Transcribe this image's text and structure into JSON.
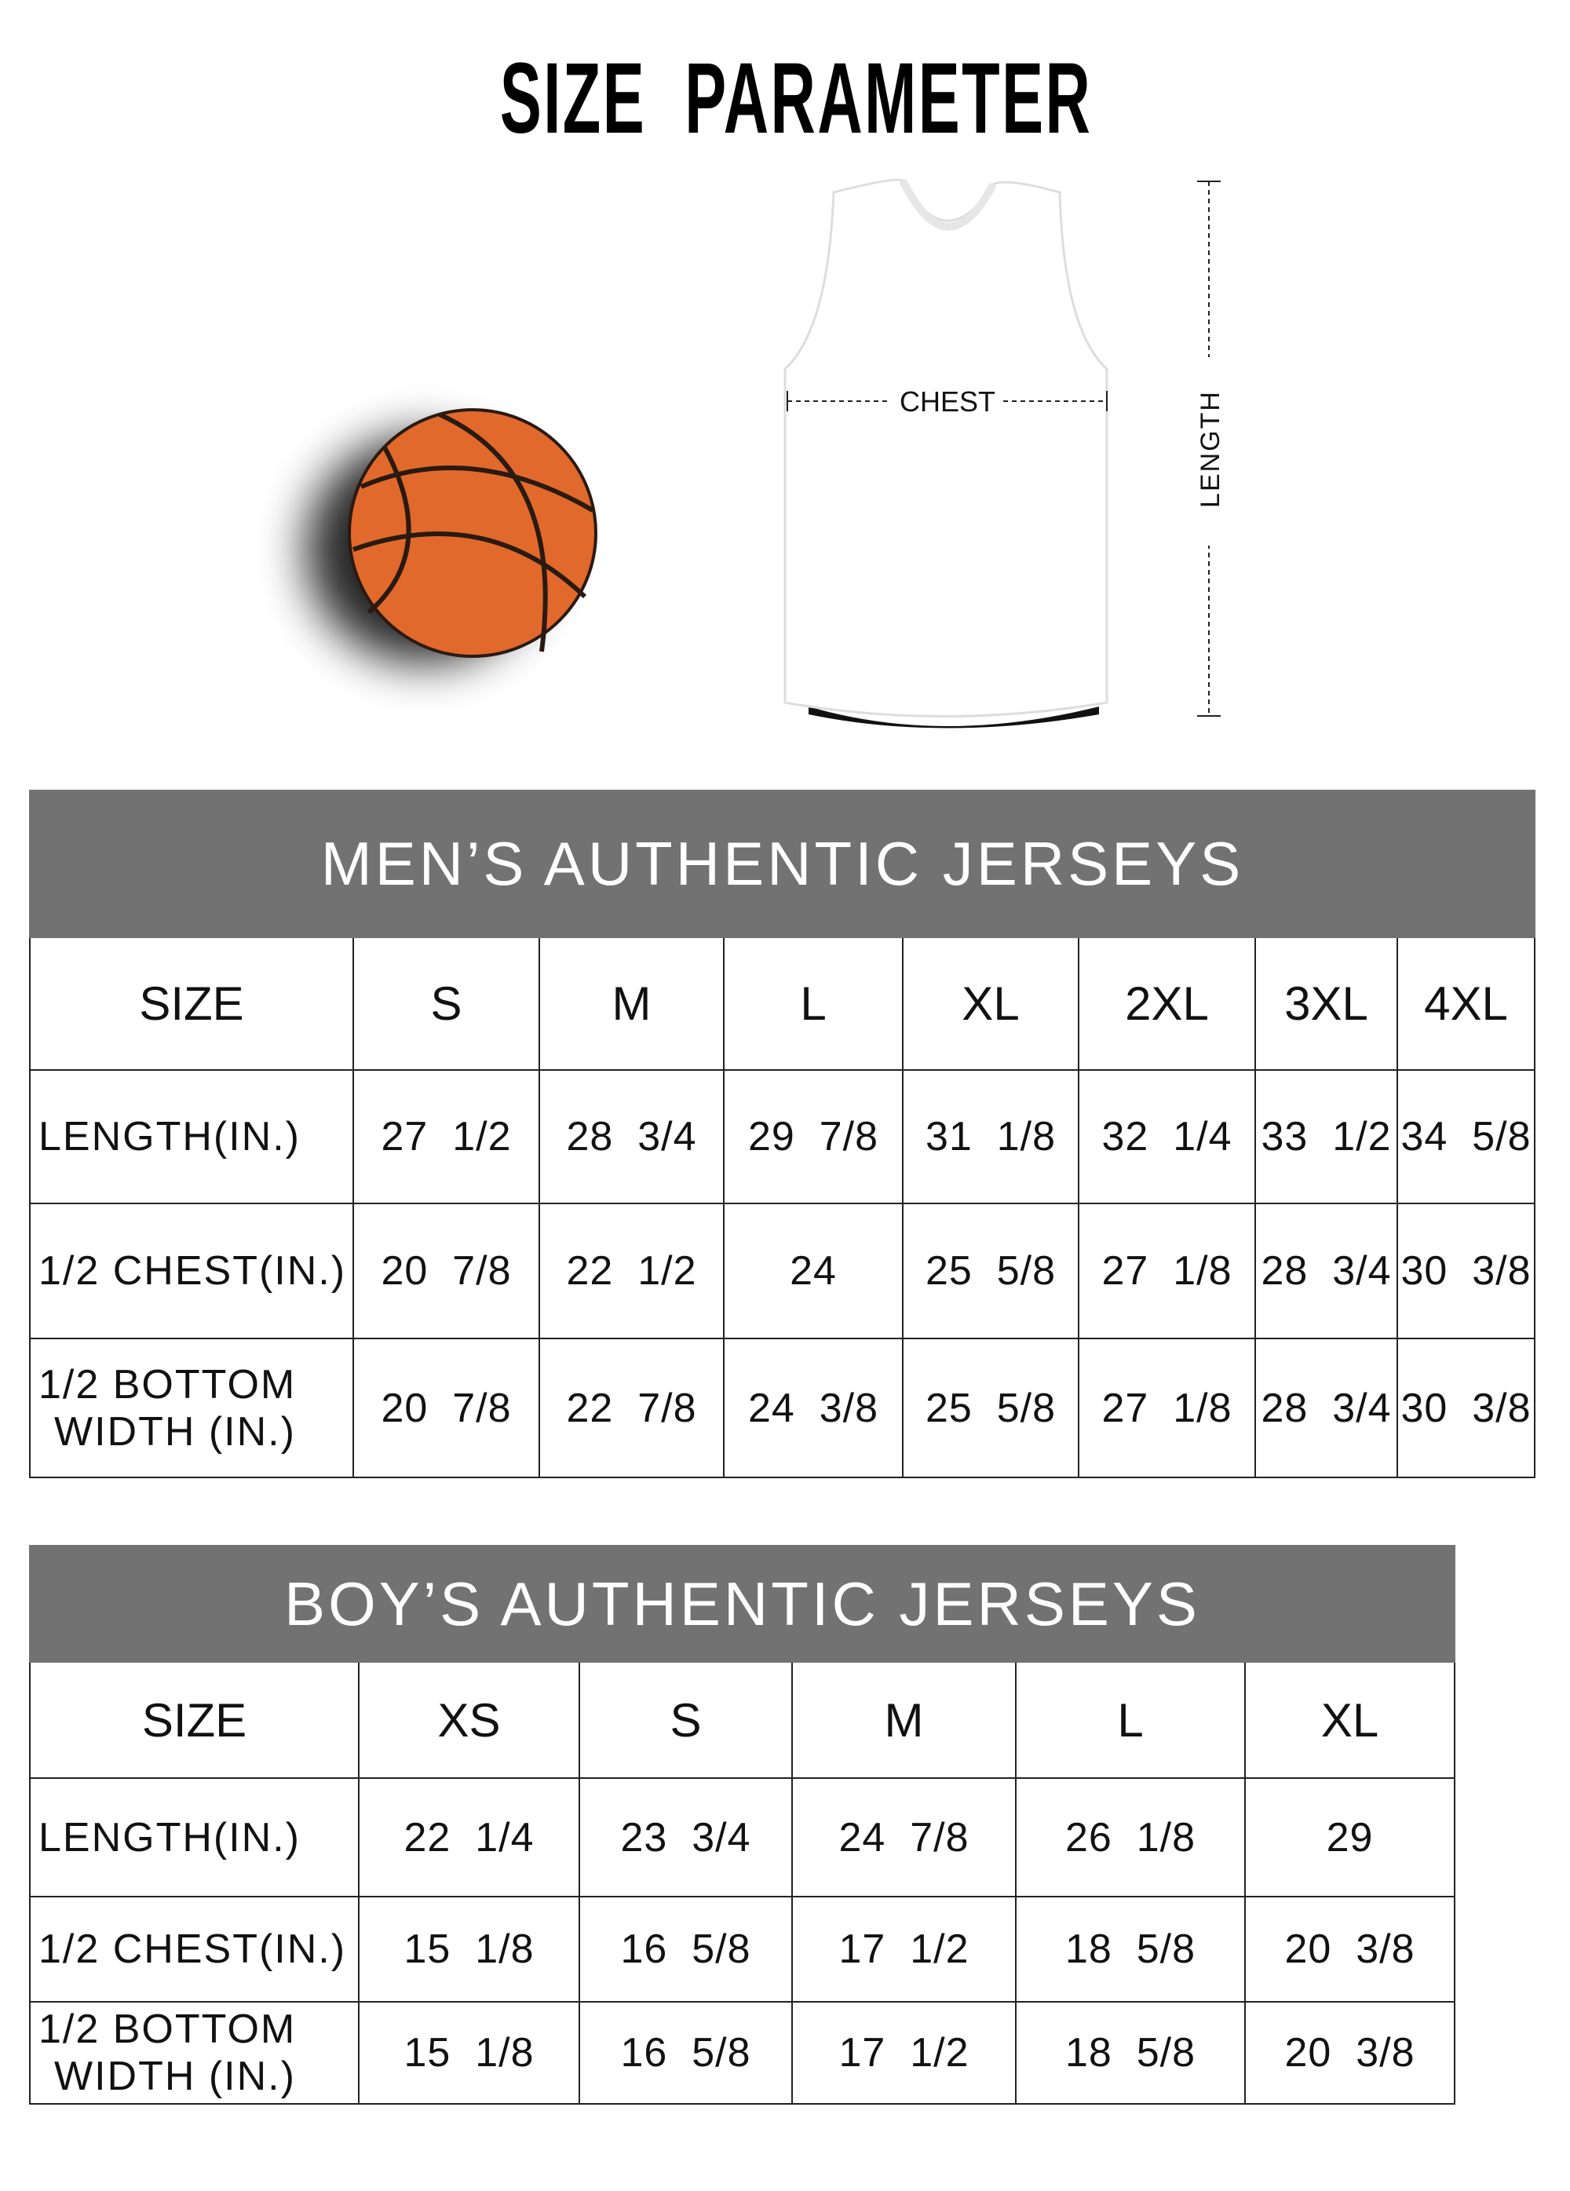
{
  "title": "SIZE  PARAMETER",
  "diagram": {
    "chest_label": "CHEST",
    "length_label": "LENGTH",
    "ball_color": "#e2692c",
    "jersey_color": "#ffffff"
  },
  "header_color": "#727272",
  "mens": {
    "title": "MEN’S AUTHENTIC JERSEYS",
    "size_label": "SIZE",
    "sizes": [
      "S",
      "M",
      "L",
      "XL",
      "2XL",
      "3XL",
      "4XL"
    ],
    "rows": [
      {
        "label": "LENGTH(IN.)",
        "values": [
          "27  1/2",
          "28  3/4",
          "29  7/8",
          "31  1/8",
          "32  1/4",
          "33  1/2",
          "34  5/8"
        ]
      },
      {
        "label": "1/2 CHEST(IN.)",
        "values": [
          "20  7/8",
          "22  1/2",
          "24",
          "25  5/8",
          "27  1/8",
          "28  3/4",
          "30  3/8"
        ]
      },
      {
        "label": "1/2 BOTTOM\nWIDTH  (IN.)",
        "values": [
          "20  7/8",
          "22  7/8",
          "24  3/8",
          "25  5/8",
          "27  1/8",
          "28  3/4",
          "30  3/8"
        ]
      }
    ]
  },
  "boys": {
    "title": "BOY’S AUTHENTIC JERSEYS",
    "size_label": "SIZE",
    "sizes": [
      "XS",
      "S",
      "M",
      "L",
      "XL"
    ],
    "rows": [
      {
        "label": "LENGTH(IN.)",
        "values": [
          "22  1/4",
          "23  3/4",
          "24  7/8",
          "26  1/8",
          "29"
        ]
      },
      {
        "label": "1/2 CHEST(IN.)",
        "values": [
          "15  1/8",
          "16  5/8",
          "17  1/2",
          "18  5/8",
          "20  3/8"
        ]
      },
      {
        "label": "1/2 BOTTOM\nWIDTH  (IN.)",
        "values": [
          "15  1/8",
          "16  5/8",
          "17  1/2",
          "18  5/8",
          "20  3/8"
        ]
      }
    ]
  }
}
